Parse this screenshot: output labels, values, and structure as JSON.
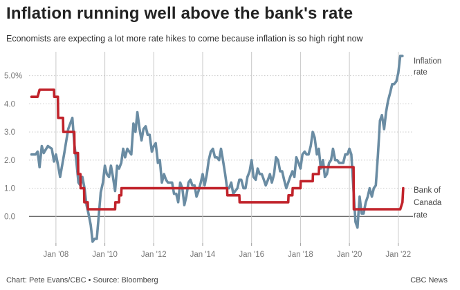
{
  "title": "Inflation running well above the bank's rate",
  "subtitle": "Economists are expecting a lot more rate hikes to come because inflation is so high right now",
  "footer": {
    "credit": "Chart: Pete Evans/CBC • Source: Bloomberg",
    "brand": "CBC News"
  },
  "colors": {
    "inflation": "#6a8ca3",
    "rate": "#c1232b",
    "grid": "#c8c8c8",
    "zero_line": "#555555"
  },
  "chart_data": {
    "type": "line",
    "title": "Inflation running well above the bank's rate",
    "xlabel": "",
    "ylabel": "",
    "x_range": [
      2006.9,
      2022.6
    ],
    "ylim": [
      -0.95,
      5.85
    ],
    "y_ticks": [
      {
        "value": 0,
        "label": "0.0"
      },
      {
        "value": 1,
        "label": "1.0"
      },
      {
        "value": 2,
        "label": "2.0"
      },
      {
        "value": 3,
        "label": "3.0"
      },
      {
        "value": 4,
        "label": "4.0"
      },
      {
        "value": 5,
        "label": "5.0%"
      }
    ],
    "x_ticks": [
      {
        "value": 2008,
        "label": "Jan '08"
      },
      {
        "value": 2010,
        "label": "Jan '10"
      },
      {
        "value": 2012,
        "label": "Jan '12"
      },
      {
        "value": 2014,
        "label": "Jan '14"
      },
      {
        "value": 2016,
        "label": "Jan '16"
      },
      {
        "value": 2018,
        "label": "Jan '18"
      },
      {
        "value": 2020,
        "label": "Jan '20"
      },
      {
        "value": 2022,
        "label": "Jan '22"
      }
    ],
    "series": [
      {
        "name": "Inflation rate",
        "label_lines": [
          "Inflation",
          "rate"
        ],
        "color": "#6a8ca3",
        "points": [
          [
            2007.0,
            2.2
          ],
          [
            2007.17,
            2.2
          ],
          [
            2007.25,
            2.3
          ],
          [
            2007.33,
            1.75
          ],
          [
            2007.42,
            2.5
          ],
          [
            2007.5,
            2.25
          ],
          [
            2007.67,
            2.5
          ],
          [
            2007.83,
            2.4
          ],
          [
            2007.92,
            1.95
          ],
          [
            2008.0,
            2.2
          ],
          [
            2008.08,
            1.85
          ],
          [
            2008.17,
            1.4
          ],
          [
            2008.33,
            2.2
          ],
          [
            2008.5,
            3.1
          ],
          [
            2008.67,
            3.5
          ],
          [
            2008.75,
            2.6
          ],
          [
            2008.83,
            2.0
          ],
          [
            2008.92,
            1.2
          ],
          [
            2009.0,
            1.1
          ],
          [
            2009.08,
            1.4
          ],
          [
            2009.17,
            1.0
          ],
          [
            2009.25,
            0.4
          ],
          [
            2009.33,
            0.1
          ],
          [
            2009.42,
            -0.3
          ],
          [
            2009.5,
            -0.9
          ],
          [
            2009.58,
            -0.8
          ],
          [
            2009.67,
            -0.8
          ],
          [
            2009.75,
            0.0
          ],
          [
            2009.83,
            0.85
          ],
          [
            2009.92,
            1.2
          ],
          [
            2010.0,
            1.8
          ],
          [
            2010.08,
            1.5
          ],
          [
            2010.17,
            1.4
          ],
          [
            2010.25,
            1.8
          ],
          [
            2010.33,
            1.4
          ],
          [
            2010.42,
            0.9
          ],
          [
            2010.5,
            1.8
          ],
          [
            2010.58,
            1.7
          ],
          [
            2010.67,
            1.9
          ],
          [
            2010.75,
            2.4
          ],
          [
            2010.83,
            2.1
          ],
          [
            2010.92,
            2.4
          ],
          [
            2011.0,
            2.3
          ],
          [
            2011.08,
            2.2
          ],
          [
            2011.17,
            3.3
          ],
          [
            2011.25,
            3.0
          ],
          [
            2011.33,
            3.7
          ],
          [
            2011.42,
            3.1
          ],
          [
            2011.5,
            2.7
          ],
          [
            2011.58,
            3.1
          ],
          [
            2011.67,
            3.2
          ],
          [
            2011.75,
            2.9
          ],
          [
            2011.83,
            2.9
          ],
          [
            2011.92,
            2.3
          ],
          [
            2012.0,
            2.5
          ],
          [
            2012.08,
            2.6
          ],
          [
            2012.17,
            1.9
          ],
          [
            2012.25,
            2.0
          ],
          [
            2012.33,
            1.2
          ],
          [
            2012.42,
            1.5
          ],
          [
            2012.5,
            1.3
          ],
          [
            2012.58,
            1.2
          ],
          [
            2012.67,
            1.2
          ],
          [
            2012.75,
            1.2
          ],
          [
            2012.83,
            0.8
          ],
          [
            2012.92,
            0.8
          ],
          [
            2013.0,
            0.5
          ],
          [
            2013.08,
            1.2
          ],
          [
            2013.17,
            1.0
          ],
          [
            2013.25,
            0.4
          ],
          [
            2013.33,
            0.7
          ],
          [
            2013.42,
            1.2
          ],
          [
            2013.5,
            1.3
          ],
          [
            2013.58,
            1.1
          ],
          [
            2013.67,
            1.1
          ],
          [
            2013.75,
            0.7
          ],
          [
            2013.83,
            0.9
          ],
          [
            2013.92,
            1.2
          ],
          [
            2014.0,
            1.5
          ],
          [
            2014.08,
            1.1
          ],
          [
            2014.17,
            1.5
          ],
          [
            2014.25,
            2.0
          ],
          [
            2014.33,
            2.3
          ],
          [
            2014.42,
            2.4
          ],
          [
            2014.5,
            2.1
          ],
          [
            2014.58,
            2.1
          ],
          [
            2014.67,
            2.0
          ],
          [
            2014.75,
            2.4
          ],
          [
            2014.83,
            2.0
          ],
          [
            2014.92,
            1.5
          ],
          [
            2015.0,
            1.0
          ],
          [
            2015.08,
            1.0
          ],
          [
            2015.17,
            1.2
          ],
          [
            2015.25,
            0.8
          ],
          [
            2015.33,
            0.9
          ],
          [
            2015.42,
            1.0
          ],
          [
            2015.5,
            1.3
          ],
          [
            2015.58,
            1.3
          ],
          [
            2015.67,
            1.0
          ],
          [
            2015.75,
            1.0
          ],
          [
            2015.83,
            1.4
          ],
          [
            2015.92,
            1.6
          ],
          [
            2016.0,
            2.0
          ],
          [
            2016.08,
            1.4
          ],
          [
            2016.17,
            1.3
          ],
          [
            2016.25,
            1.7
          ],
          [
            2016.33,
            1.5
          ],
          [
            2016.42,
            1.5
          ],
          [
            2016.5,
            1.3
          ],
          [
            2016.58,
            1.1
          ],
          [
            2016.67,
            1.3
          ],
          [
            2016.75,
            1.5
          ],
          [
            2016.83,
            1.2
          ],
          [
            2016.92,
            1.5
          ],
          [
            2017.0,
            2.1
          ],
          [
            2017.08,
            2.0
          ],
          [
            2017.17,
            1.6
          ],
          [
            2017.25,
            1.6
          ],
          [
            2017.33,
            1.3
          ],
          [
            2017.42,
            1.0
          ],
          [
            2017.5,
            1.2
          ],
          [
            2017.58,
            1.4
          ],
          [
            2017.67,
            1.6
          ],
          [
            2017.75,
            1.4
          ],
          [
            2017.83,
            2.1
          ],
          [
            2017.92,
            1.9
          ],
          [
            2018.0,
            1.7
          ],
          [
            2018.08,
            2.2
          ],
          [
            2018.17,
            2.3
          ],
          [
            2018.25,
            2.2
          ],
          [
            2018.33,
            2.2
          ],
          [
            2018.42,
            2.5
          ],
          [
            2018.5,
            3.0
          ],
          [
            2018.58,
            2.8
          ],
          [
            2018.67,
            2.2
          ],
          [
            2018.75,
            2.4
          ],
          [
            2018.83,
            1.7
          ],
          [
            2018.92,
            2.0
          ],
          [
            2019.0,
            1.4
          ],
          [
            2019.08,
            1.5
          ],
          [
            2019.17,
            1.9
          ],
          [
            2019.25,
            2.0
          ],
          [
            2019.33,
            2.4
          ],
          [
            2019.42,
            2.0
          ],
          [
            2019.5,
            2.0
          ],
          [
            2019.58,
            1.9
          ],
          [
            2019.67,
            1.9
          ],
          [
            2019.75,
            1.9
          ],
          [
            2019.83,
            2.2
          ],
          [
            2019.92,
            2.2
          ],
          [
            2020.0,
            2.4
          ],
          [
            2020.08,
            2.2
          ],
          [
            2020.17,
            0.9
          ],
          [
            2020.25,
            -0.2
          ],
          [
            2020.33,
            -0.4
          ],
          [
            2020.42,
            0.7
          ],
          [
            2020.5,
            0.1
          ],
          [
            2020.58,
            0.1
          ],
          [
            2020.67,
            0.5
          ],
          [
            2020.75,
            0.7
          ],
          [
            2020.83,
            1.0
          ],
          [
            2020.92,
            0.7
          ],
          [
            2021.0,
            1.0
          ],
          [
            2021.08,
            1.1
          ],
          [
            2021.17,
            2.2
          ],
          [
            2021.25,
            3.4
          ],
          [
            2021.33,
            3.6
          ],
          [
            2021.42,
            3.1
          ],
          [
            2021.5,
            3.7
          ],
          [
            2021.58,
            4.1
          ],
          [
            2021.67,
            4.4
          ],
          [
            2021.75,
            4.7
          ],
          [
            2021.83,
            4.7
          ],
          [
            2021.92,
            4.8
          ],
          [
            2022.0,
            5.1
          ],
          [
            2022.08,
            5.7
          ],
          [
            2022.17,
            5.7
          ]
        ]
      },
      {
        "name": "Bank of Canada rate",
        "label_lines": [
          "Bank of",
          "Canada",
          "rate"
        ],
        "color": "#c1232b",
        "points": [
          [
            2007.0,
            4.25
          ],
          [
            2007.25,
            4.25
          ],
          [
            2007.33,
            4.5
          ],
          [
            2007.92,
            4.5
          ],
          [
            2007.93,
            4.25
          ],
          [
            2008.08,
            4.25
          ],
          [
            2008.09,
            3.5
          ],
          [
            2008.29,
            3.5
          ],
          [
            2008.3,
            3.0
          ],
          [
            2008.75,
            3.0
          ],
          [
            2008.76,
            2.25
          ],
          [
            2008.9,
            2.25
          ],
          [
            2008.91,
            1.5
          ],
          [
            2009.0,
            1.5
          ],
          [
            2009.01,
            1.0
          ],
          [
            2009.15,
            1.0
          ],
          [
            2009.16,
            0.5
          ],
          [
            2009.3,
            0.5
          ],
          [
            2009.31,
            0.25
          ],
          [
            2010.42,
            0.25
          ],
          [
            2010.43,
            0.5
          ],
          [
            2010.58,
            0.5
          ],
          [
            2010.59,
            0.75
          ],
          [
            2010.67,
            0.75
          ],
          [
            2010.68,
            1.0
          ],
          [
            2015.0,
            1.0
          ],
          [
            2015.01,
            0.75
          ],
          [
            2015.5,
            0.75
          ],
          [
            2015.51,
            0.5
          ],
          [
            2017.5,
            0.5
          ],
          [
            2017.51,
            0.75
          ],
          [
            2017.67,
            0.75
          ],
          [
            2017.68,
            1.0
          ],
          [
            2018.0,
            1.0
          ],
          [
            2018.01,
            1.25
          ],
          [
            2018.5,
            1.25
          ],
          [
            2018.51,
            1.5
          ],
          [
            2018.75,
            1.5
          ],
          [
            2018.76,
            1.75
          ],
          [
            2020.17,
            1.75
          ],
          [
            2020.18,
            0.25
          ],
          [
            2022.08,
            0.25
          ],
          [
            2022.17,
            0.5
          ],
          [
            2022.2,
            1.0
          ]
        ]
      }
    ]
  }
}
